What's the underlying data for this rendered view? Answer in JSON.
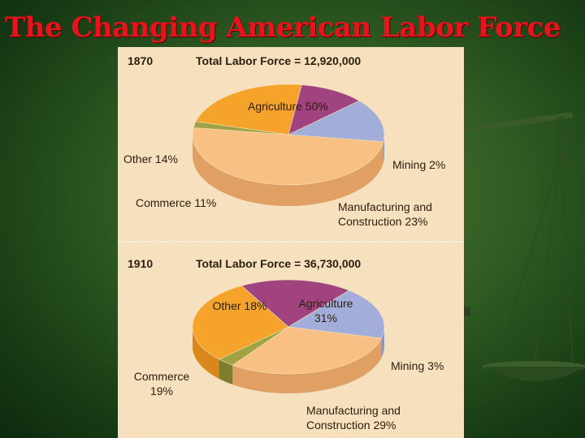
{
  "slide": {
    "title": "The Changing American Labor Force"
  },
  "chart_data": [
    {
      "type": "pie",
      "year": "1870",
      "total_label": "Total Labor Force = 12,920,000",
      "slices": [
        {
          "key": "agriculture",
          "label_lines": [
            "Agriculture 50%"
          ],
          "value": 50,
          "color": "#f8c083",
          "side": "#e0a063"
        },
        {
          "key": "mining",
          "label_lines": [
            "Mining 2%"
          ],
          "value": 2,
          "color": "#a0a244",
          "side": "#7c7e2c"
        },
        {
          "key": "manufacturing",
          "label_lines": [
            "Manufacturing and",
            "Construction 23%"
          ],
          "value": 23,
          "color": "#f5a32b",
          "side": "#d9861a"
        },
        {
          "key": "commerce",
          "label_lines": [
            "Commerce 11%"
          ],
          "value": 11,
          "color": "#a0437e",
          "side": "#bd7ca7"
        },
        {
          "key": "other",
          "label_lines": [
            "Other 14%"
          ],
          "value": 14,
          "color": "#a3adda",
          "side": "#8894c3"
        }
      ]
    },
    {
      "type": "pie",
      "year": "1910",
      "total_label": "Total Labor Force = 36,730,000",
      "slices": [
        {
          "key": "agriculture",
          "label_lines": [
            "Agriculture",
            "31%"
          ],
          "value": 31,
          "color": "#f8c083",
          "side": "#e0a063"
        },
        {
          "key": "mining",
          "label_lines": [
            "Mining 3%"
          ],
          "value": 3,
          "color": "#a0a244",
          "side": "#7c7e2c"
        },
        {
          "key": "manufacturing",
          "label_lines": [
            "Manufacturing and",
            "Construction 29%"
          ],
          "value": 29,
          "color": "#f5a32b",
          "side": "#d9861a"
        },
        {
          "key": "commerce",
          "label_lines": [
            "Commerce",
            "19%"
          ],
          "value": 19,
          "color": "#a0437e",
          "side": "#bd7ca7"
        },
        {
          "key": "other",
          "label_lines": [
            "Other 18%"
          ],
          "value": 18,
          "color": "#a3adda",
          "side": "#8894c3"
        }
      ]
    }
  ]
}
